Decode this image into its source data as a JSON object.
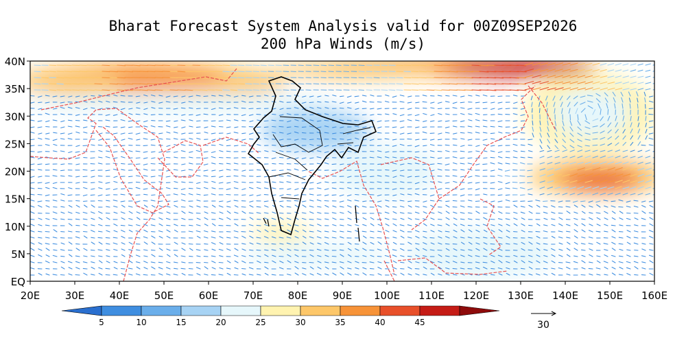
{
  "title": {
    "line1": "Bharat Forecast System Analysis valid for 00Z09SEP2026",
    "line2": "200 hPa Winds (m/s)"
  },
  "map": {
    "lat_labels": [
      "40N",
      "35N",
      "30N",
      "25N",
      "20N",
      "15N",
      "10N",
      "5N",
      "EQ"
    ],
    "lon_labels": [
      "20E",
      "30E",
      "40E",
      "50E",
      "60E",
      "70E",
      "80E",
      "90E",
      "100E",
      "110E",
      "120E",
      "130E",
      "140E",
      "150E",
      "160E"
    ],
    "lat_range": [
      0,
      40
    ],
    "lon_range": [
      20,
      160
    ],
    "colors": {
      "coastline": "#e85050",
      "india_boundary": "#000000",
      "background": "#ffffff"
    }
  },
  "colorbar": {
    "labels": [
      "5",
      "10",
      "15",
      "20",
      "25",
      "30",
      "35",
      "40",
      "45"
    ],
    "colors": [
      "#2a6fcf",
      "#3f8ee0",
      "#6aaeea",
      "#a7d3f4",
      "#e6f7fb",
      "#fff3b0",
      "#fdc769",
      "#f79338",
      "#e8502a",
      "#c51c16",
      "#8e0b0b"
    ]
  },
  "reference_vector": {
    "label": "30"
  }
}
